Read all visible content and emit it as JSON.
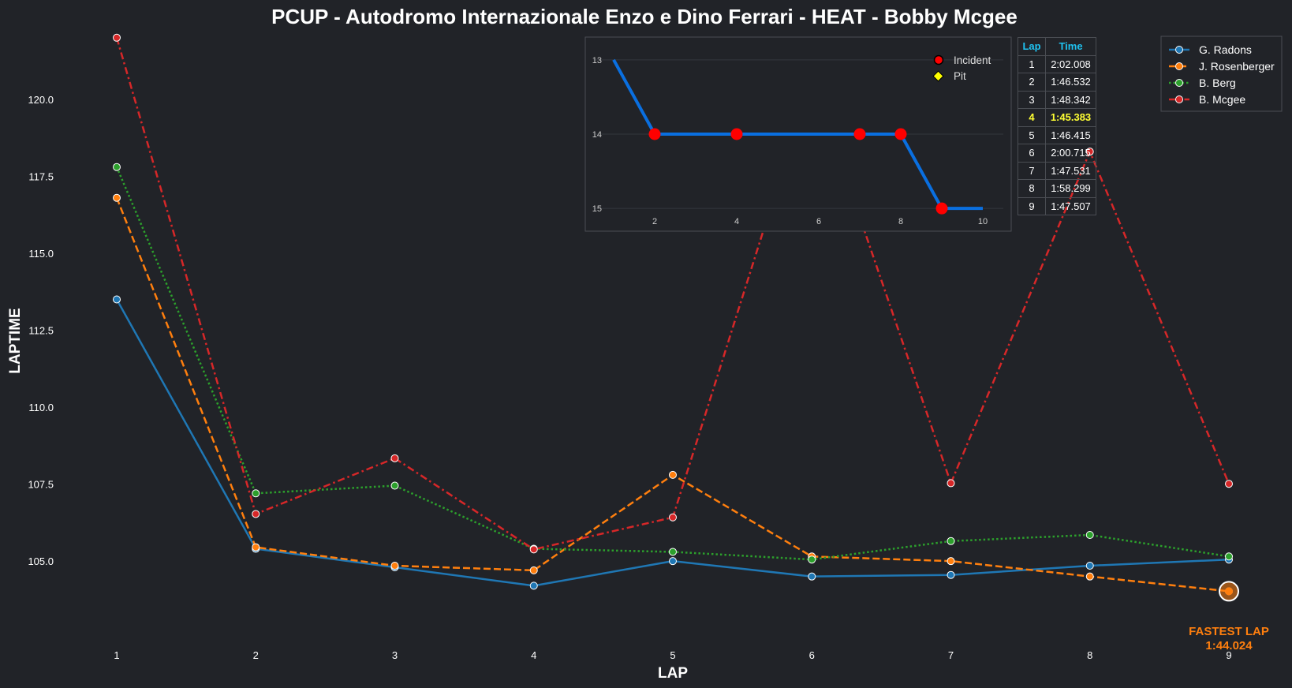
{
  "chart_data": [
    {
      "type": "line",
      "title": "PCUP - Autodromo Internazionale Enzo e Dino Ferrari - HEAT - Bobby Mcgee",
      "xlabel": "LAP",
      "ylabel": "LAPTIME",
      "x": [
        1,
        2,
        3,
        4,
        5,
        6,
        7,
        8,
        9
      ],
      "x_ticks": [
        "1",
        "2",
        "3",
        "4",
        "5",
        "6",
        "7",
        "8",
        "9"
      ],
      "y_ticks": [
        "105.0",
        "107.5",
        "110.0",
        "112.5",
        "115.0",
        "117.5",
        "120.0"
      ],
      "ylim": [
        102.8,
        122.2
      ],
      "grid": false,
      "legend_position": "top-right",
      "series": [
        {
          "name": "G. Radons",
          "color": "#1f77b4",
          "style": "solid",
          "values": [
            113.5,
            105.4,
            104.8,
            104.2,
            105.0,
            104.5,
            104.55,
            104.85,
            105.05
          ]
        },
        {
          "name": "J. Rosenberger",
          "color": "#ff7f0e",
          "style": "dashed",
          "values": [
            116.8,
            105.45,
            104.85,
            104.7,
            107.8,
            105.15,
            105.0,
            104.5,
            104.02
          ]
        },
        {
          "name": "B. Berg",
          "color": "#2ca02c",
          "style": "dotted",
          "values": [
            117.8,
            107.2,
            107.45,
            105.4,
            105.3,
            105.05,
            105.65,
            105.85,
            105.15
          ]
        },
        {
          "name": "B. Mcgee",
          "color": "#d62728",
          "style": "dashdot",
          "values": [
            122.0,
            106.53,
            108.34,
            105.38,
            106.42,
            120.72,
            107.53,
            118.3,
            107.51
          ]
        }
      ],
      "annotation": {
        "label": "FASTEST LAP",
        "value": "1:44.024",
        "lap": 9,
        "laptime": 104.02,
        "color": "#ff7f0e"
      }
    },
    {
      "type": "line",
      "title": "",
      "x": [
        1,
        2,
        3,
        4,
        5,
        6,
        7,
        8,
        9,
        10
      ],
      "values": [
        13,
        14,
        14,
        14,
        14,
        14,
        14,
        14,
        15,
        15
      ],
      "x_ticks": [
        "2",
        "4",
        "6",
        "8",
        "10"
      ],
      "y_ticks": [
        "13",
        "14",
        "15"
      ],
      "xlim": [
        0.5,
        10.5
      ],
      "ylim": [
        12.8,
        15.2
      ],
      "y_inverted": true,
      "line_color": "#0a6fe0",
      "incident_laps": [
        2,
        4,
        7,
        8,
        9
      ],
      "pit_laps": [],
      "legend": [
        {
          "label": "Incident",
          "color": "#ff0000",
          "marker": "circle"
        },
        {
          "label": "Pit",
          "color": "#ffff00",
          "marker": "diamond"
        }
      ]
    }
  ],
  "table": {
    "headers": [
      "Lap",
      "Time"
    ],
    "fastest_row": 3,
    "rows": [
      [
        "1",
        "2:02.008"
      ],
      [
        "2",
        "1:46.532"
      ],
      [
        "3",
        "1:48.342"
      ],
      [
        "4",
        "1:45.383"
      ],
      [
        "5",
        "1:46.415"
      ],
      [
        "6",
        "2:00.715"
      ],
      [
        "7",
        "1:47.531"
      ],
      [
        "8",
        "1:58.299"
      ],
      [
        "9",
        "1:47.507"
      ]
    ]
  }
}
